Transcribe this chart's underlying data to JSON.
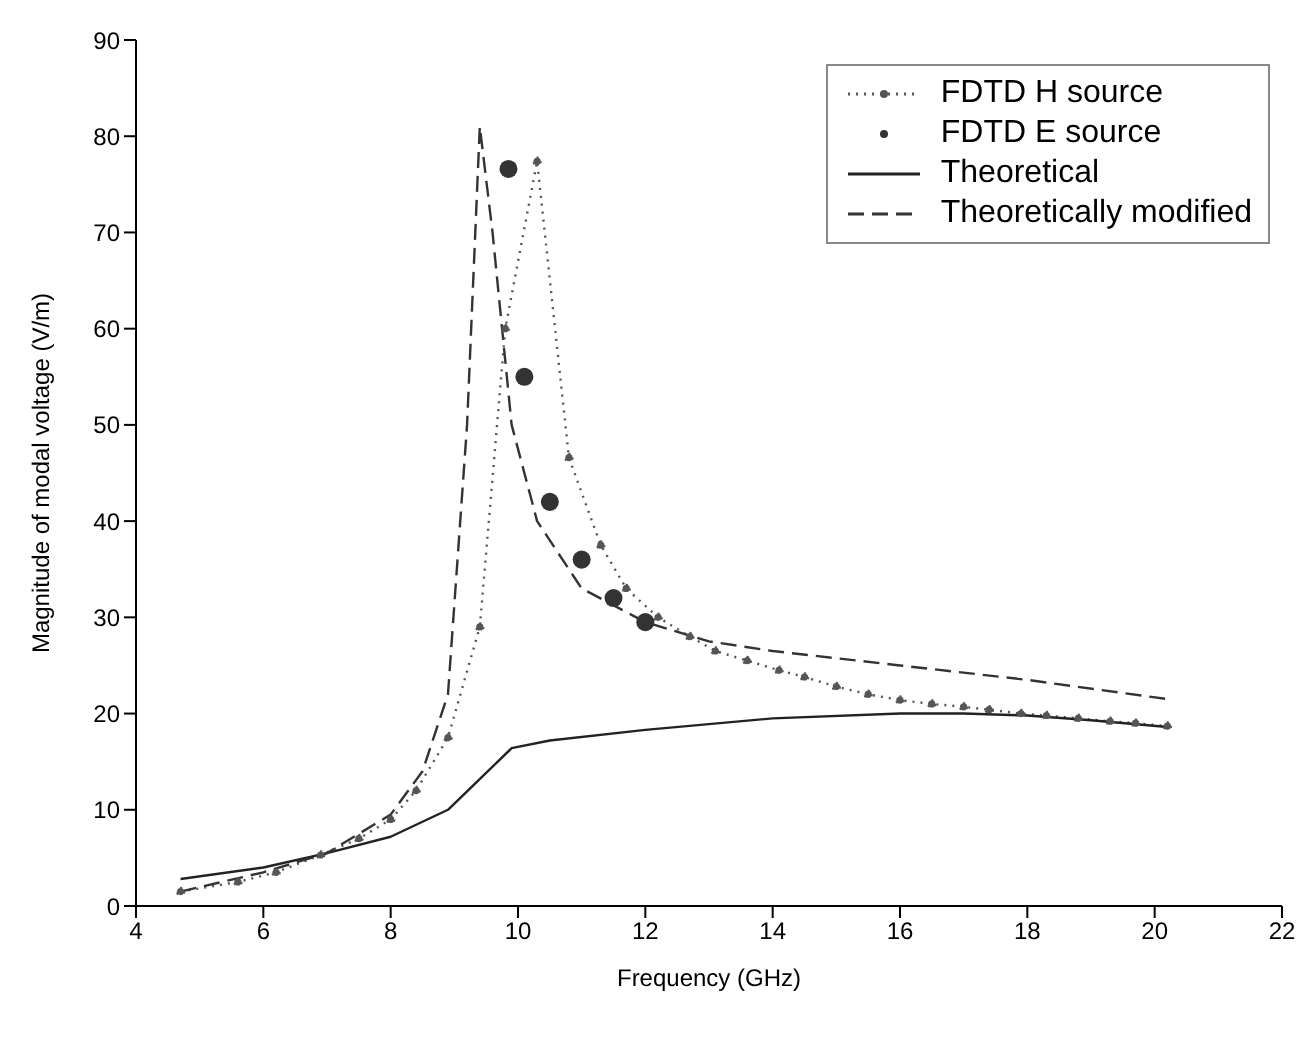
{
  "chart_data": {
    "type": "line",
    "xlabel": "Frequency (GHz)",
    "ylabel": "Magnitude of modal voltage (V/m)",
    "xlim": [
      4,
      22
    ],
    "xticks": [
      4,
      6,
      8,
      10,
      12,
      14,
      16,
      18,
      20,
      22
    ],
    "ylim": [
      0,
      90
    ],
    "yticks": [
      0,
      10,
      20,
      30,
      40,
      50,
      60,
      70,
      80,
      90
    ],
    "legend": "top right",
    "series": [
      {
        "name": "FDTD H source",
        "color": "#555555",
        "line_style": "dotted",
        "marker": "circle",
        "x": [
          4.7,
          5.6,
          6.2,
          6.9,
          7.5,
          8,
          8.4,
          8.9,
          9.4,
          9.8,
          10.3,
          10.8,
          11.3,
          11.7,
          12.2,
          12.7,
          13.1,
          13.6,
          14.1,
          14.5,
          15,
          15.5,
          16,
          16.5,
          17,
          17.4,
          17.9,
          18.3,
          18.8,
          19.3,
          19.7,
          20.2
        ],
        "values": [
          1.5,
          2.5,
          3.5,
          5.3,
          7,
          9,
          12,
          17.5,
          29,
          60,
          77.4,
          46.6,
          37.5,
          33,
          30,
          28,
          26.5,
          25.5,
          24.5,
          23.8,
          22.8,
          22,
          21.4,
          21,
          20.7,
          20.4,
          20,
          19.8,
          19.5,
          19.2,
          19,
          18.7
        ]
      },
      {
        "name": "FDTD E source",
        "type": "scatter",
        "color": "#333333",
        "marker": "circle",
        "x": [
          9.85,
          10.1,
          10.5,
          11,
          11.5,
          12
        ],
        "values": [
          76.6,
          55,
          42,
          36,
          32,
          29.5
        ]
      },
      {
        "name": "Theoretical",
        "color": "#222222",
        "line_style": "solid",
        "marker": "none",
        "x": [
          4.7,
          6,
          7,
          8,
          8.9,
          9.9,
          10.5,
          12,
          14,
          16,
          17,
          18,
          19,
          20.2
        ],
        "values": [
          2.8,
          4,
          5.5,
          7.2,
          10,
          16.4,
          17.2,
          18.3,
          19.5,
          20,
          20,
          19.8,
          19.3,
          18.6
        ]
      },
      {
        "name": "Theoretically modified",
        "color": "#333333",
        "line_style": "dashed",
        "marker": "none",
        "x": [
          4.7,
          6,
          7,
          8,
          8.5,
          8.9,
          9.2,
          9.4,
          9.6,
          9.9,
          10.3,
          11,
          12,
          13,
          14,
          16,
          18,
          20.2
        ],
        "values": [
          1.5,
          3.5,
          5.5,
          9.5,
          14,
          22,
          50,
          81,
          70,
          50,
          40,
          33,
          29.5,
          27.5,
          26.5,
          25,
          23.5,
          21.5
        ]
      }
    ]
  }
}
